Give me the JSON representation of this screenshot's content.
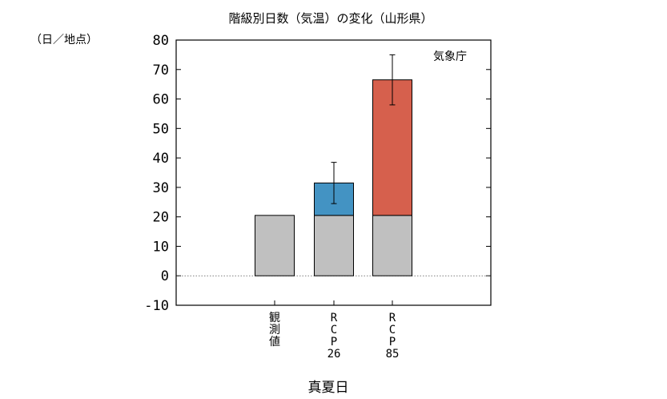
{
  "chart_data": {
    "type": "bar",
    "title": "階級別日数（気温）の変化（山形県）",
    "ylabel": "（日／地点）",
    "xlabel": "真夏日",
    "source_note": "気象庁",
    "ylim": [
      -10,
      80
    ],
    "yticks": [
      -10,
      0,
      10,
      20,
      30,
      40,
      50,
      60,
      70,
      80
    ],
    "grid": false,
    "zero_line": "dotted",
    "categories": [
      {
        "id": "obs",
        "label_lines": [
          "観",
          "測",
          "値"
        ]
      },
      {
        "id": "rcp26",
        "label_lines": [
          "R",
          "C",
          "P",
          "26"
        ]
      },
      {
        "id": "rcp85",
        "label_lines": [
          "R",
          "C",
          "P",
          "85"
        ]
      }
    ],
    "series": [
      {
        "role": "base",
        "color": "#c0c0c0",
        "values": [
          20.5,
          20.5,
          20.5
        ]
      },
      {
        "role": "increase",
        "colors": [
          "#c0c0c0",
          "#4393c3",
          "#d6604d"
        ],
        "values": [
          0,
          11,
          46
        ]
      }
    ],
    "error_bars": [
      null,
      {
        "center": 31.5,
        "low": 24.5,
        "high": 38.5
      },
      {
        "center": 66.5,
        "low": 58,
        "high": 75
      }
    ]
  }
}
